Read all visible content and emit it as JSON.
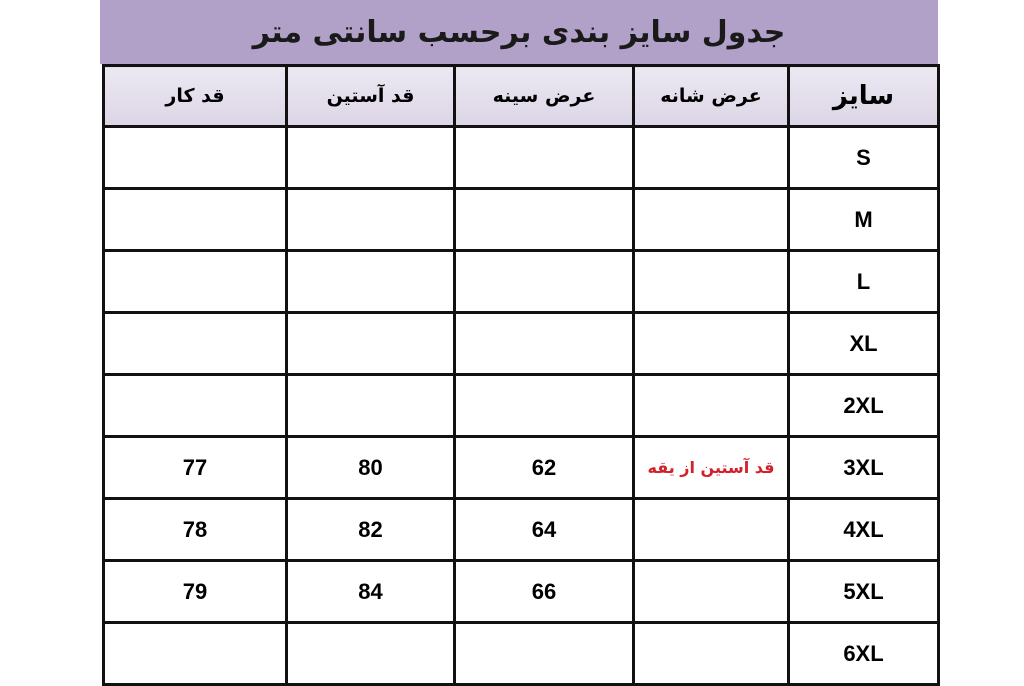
{
  "title": "جدول سایز بندی برحسب سانتی متر",
  "colors": {
    "title_bar": "#b1a1c9",
    "header_bg": "#e4dfec",
    "note": "#d3212b"
  },
  "headers": [
    "قد کار",
    "قد آستین",
    "عرض سینه",
    "عرض شانه",
    "سایز"
  ],
  "rows": [
    {
      "size": "S",
      "length": "",
      "sleeve": "",
      "chest": "",
      "shoulder": ""
    },
    {
      "size": "M",
      "length": "",
      "sleeve": "",
      "chest": "",
      "shoulder": ""
    },
    {
      "size": "L",
      "length": "",
      "sleeve": "",
      "chest": "",
      "shoulder": ""
    },
    {
      "size": "XL",
      "length": "",
      "sleeve": "",
      "chest": "",
      "shoulder": ""
    },
    {
      "size": "2XL",
      "length": "",
      "sleeve": "",
      "chest": "",
      "shoulder": ""
    },
    {
      "size": "3XL",
      "length": "77",
      "sleeve": "80",
      "chest": "62",
      "shoulder": "قد آستین از یقه"
    },
    {
      "size": "4XL",
      "length": "78",
      "sleeve": "82",
      "chest": "64",
      "shoulder": ""
    },
    {
      "size": "5XL",
      "length": "79",
      "sleeve": "84",
      "chest": "66",
      "shoulder": ""
    },
    {
      "size": "6XL",
      "length": "",
      "sleeve": "",
      "chest": "",
      "shoulder": ""
    }
  ]
}
